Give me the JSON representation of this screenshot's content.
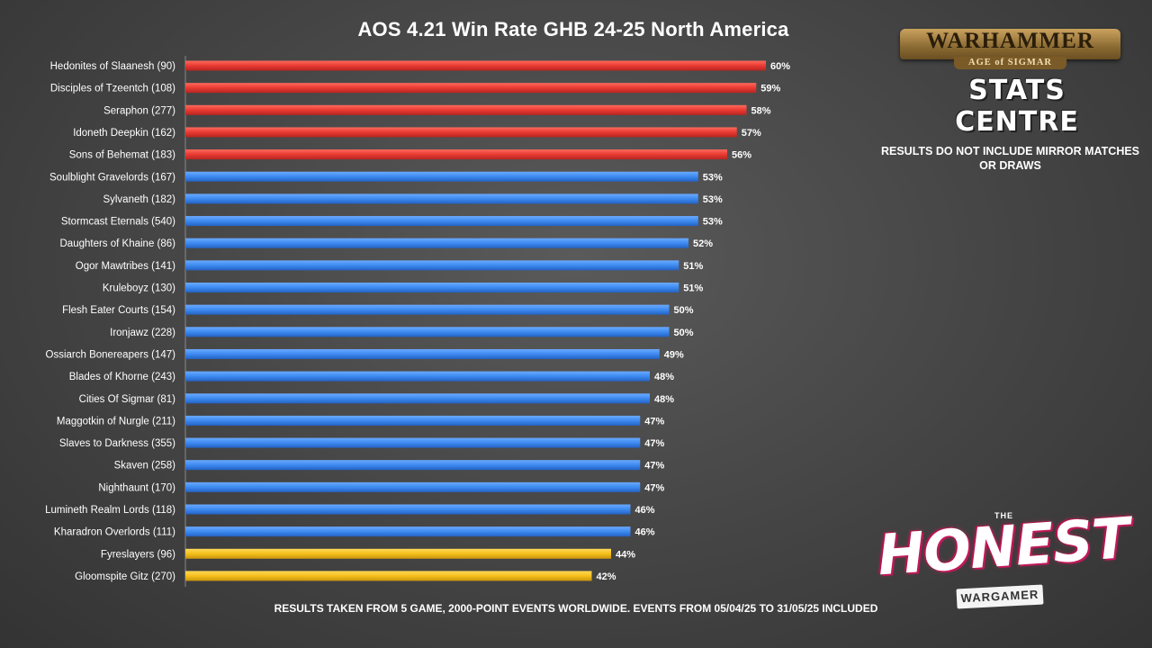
{
  "chart_data": {
    "type": "bar",
    "orientation": "horizontal",
    "title": "AOS 4.21 Win Rate GHB 24-25 North America",
    "value_suffix": "%",
    "categories": [
      "Hedonites of Slaanesh (90)",
      "Disciples of Tzeentch (108)",
      "Seraphon (277)",
      "Idoneth Deepkin (162)",
      "Sons of Behemat (183)",
      "Soulblight Gravelords (167)",
      "Sylvaneth (182)",
      "Stormcast Eternals (540)",
      "Daughters of Khaine (86)",
      "Ogor Mawtribes (141)",
      "Kruleboyz (130)",
      "Flesh Eater Courts (154)",
      "Ironjawz (228)",
      "Ossiarch Bonereapers (147)",
      "Blades of Khorne (243)",
      "Cities Of Sigmar (81)",
      "Maggotkin of Nurgle (211)",
      "Slaves to Darkness (355)",
      "Skaven (258)",
      "Nighthaunt (170)",
      "Lumineth Realm Lords (118)",
      "Kharadron Overlords (111)",
      "Fyreslayers (96)",
      "Gloomspite Gitz (270)"
    ],
    "values": [
      60,
      59,
      58,
      57,
      56,
      53,
      53,
      53,
      52,
      51,
      51,
      50,
      50,
      49,
      48,
      48,
      47,
      47,
      47,
      47,
      46,
      46,
      44,
      42
    ],
    "colors": {
      "high": "#e83a32",
      "mid": "#3d8af0",
      "low": "#f5bf1a"
    },
    "color_groups": [
      "high",
      "high",
      "high",
      "high",
      "high",
      "mid",
      "mid",
      "mid",
      "mid",
      "mid",
      "mid",
      "mid",
      "mid",
      "mid",
      "mid",
      "mid",
      "mid",
      "mid",
      "mid",
      "mid",
      "mid",
      "mid",
      "low",
      "low"
    ],
    "xlim": [
      0,
      60
    ],
    "grid": false,
    "legend": "none"
  },
  "note": {
    "line1": "RESULTS DO NOT INCLUDE MIRROR MATCHES",
    "line2": "OR DRAWS"
  },
  "footer": "RESULTS TAKEN FROM 5 GAME, 2000-POINT EVENTS WORLDWIDE. EVENTS FROM 05/04/25 TO 31/05/25 INCLUDED",
  "logos": {
    "warhammer": {
      "banner": "WARHAMMER",
      "sub": "AGE of SIGMAR",
      "stats": "STATS CENTRE"
    },
    "honest": {
      "the": "THE",
      "main": "HONEST",
      "sub": "WARGAMER"
    }
  }
}
